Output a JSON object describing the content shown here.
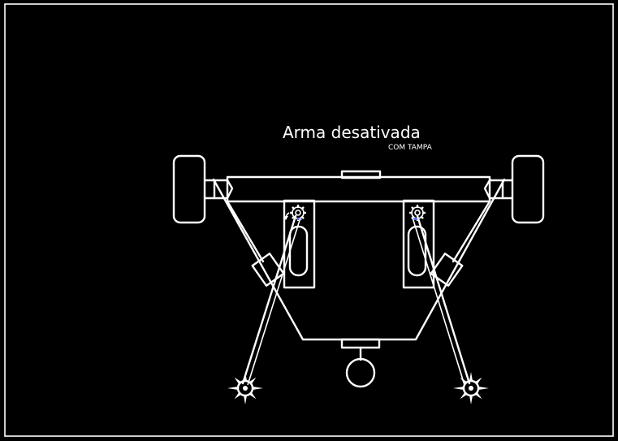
{
  "diagram": {
    "title": "Arma desativada",
    "subtitle": "COM TAMPA"
  },
  "colors": {
    "background": "#000000",
    "line": "#ffffff",
    "accent": "#4a6cff"
  },
  "icons": [
    "wheel-icon",
    "gear-icon",
    "rotation-arrow-icon",
    "spiked-ball-icon"
  ]
}
